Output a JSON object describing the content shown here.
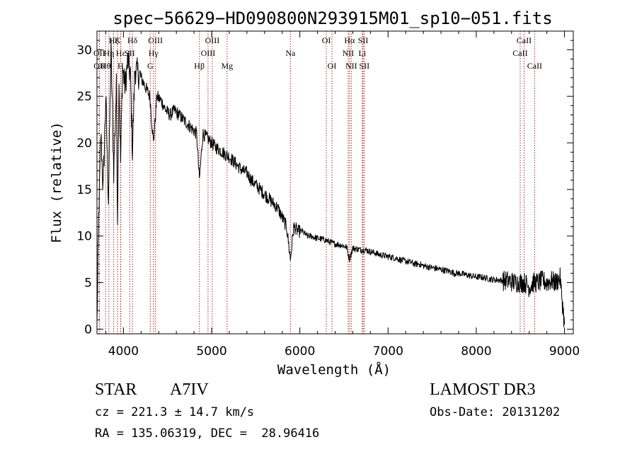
{
  "chart_data": {
    "type": "line",
    "title": "spec−56629−HD090800N293915M01_sp10−051.fits",
    "xlabel": "Wavelength (Å)",
    "ylabel": "Flux (relative)",
    "xlim": [
      3700,
      9100
    ],
    "ylim": [
      -0.5,
      32.0
    ],
    "xticks": [
      4000,
      5000,
      6000,
      7000,
      8000,
      9000
    ],
    "xtick_labels": [
      "4000",
      "5000",
      "6000",
      "7000",
      "8000",
      "9000"
    ],
    "yticks": [
      0,
      5,
      10,
      15,
      20,
      25,
      30
    ],
    "ytick_labels": [
      "0",
      "5",
      "10",
      "15",
      "20",
      "25",
      "30"
    ],
    "series": [
      {
        "name": "flux",
        "x": [
          3700,
          3720,
          3745,
          3770,
          3800,
          3830,
          3860,
          3890,
          3920,
          3933,
          3950,
          3968,
          3990,
          4020,
          4050,
          4080,
          4102,
          4130,
          4160,
          4200,
          4250,
          4300,
          4340,
          4380,
          4430,
          4480,
          4530,
          4580,
          4630,
          4680,
          4730,
          4780,
          4830,
          4861,
          4900,
          4950,
          5000,
          5050,
          5100,
          5150,
          5200,
          5250,
          5300,
          5350,
          5400,
          5450,
          5500,
          5550,
          5600,
          5650,
          5700,
          5750,
          5800,
          5850,
          5893,
          5930,
          5980,
          6030,
          6080,
          6130,
          6180,
          6230,
          6280,
          6330,
          6380,
          6430,
          6480,
          6530,
          6563,
          6600,
          6650,
          6700,
          6750,
          6800,
          6850,
          6900,
          6950,
          7000,
          7050,
          7100,
          7150,
          7200,
          7250,
          7300,
          7350,
          7400,
          7450,
          7500,
          7550,
          7600,
          7650,
          7700,
          7750,
          7800,
          7850,
          7900,
          7950,
          8000,
          8050,
          8100,
          8150,
          8200,
          8250,
          8300,
          8350,
          8400,
          8450,
          8500,
          8550,
          8600,
          8650,
          8700,
          8750,
          8800,
          8850,
          8900,
          8950,
          9000
        ],
        "values": [
          0.5,
          12.0,
          21.0,
          15.0,
          25.0,
          14.0,
          30.0,
          17.0,
          26.0,
          12.0,
          27.0,
          18.0,
          28.0,
          26.0,
          29.0,
          27.0,
          19.0,
          28.0,
          27.5,
          27.0,
          26.0,
          25.0,
          20.0,
          25.0,
          24.5,
          23.5,
          23.0,
          23.5,
          23.0,
          22.5,
          22.0,
          21.5,
          21.0,
          16.0,
          21.0,
          20.5,
          20.0,
          19.5,
          19.2,
          18.8,
          18.5,
          18.0,
          17.5,
          17.0,
          16.8,
          16.0,
          15.5,
          15.0,
          14.5,
          14.0,
          13.5,
          13.0,
          12.0,
          11.0,
          7.5,
          11.0,
          10.5,
          10.5,
          10.0,
          10.0,
          9.8,
          9.7,
          9.6,
          9.4,
          9.2,
          9.1,
          9.0,
          8.8,
          7.5,
          8.7,
          8.6,
          8.5,
          8.5,
          8.3,
          8.2,
          8.0,
          7.9,
          7.8,
          7.7,
          7.6,
          7.4,
          7.3,
          7.2,
          7.0,
          7.0,
          6.8,
          6.7,
          6.6,
          6.5,
          6.4,
          6.3,
          6.2,
          6.0,
          6.0,
          5.9,
          5.8,
          5.7,
          5.6,
          5.6,
          5.5,
          5.4,
          5.3,
          5.3,
          5.2,
          5.2,
          5.1,
          5.0,
          5.0,
          5.0,
          4.5,
          5.0,
          5.0,
          5.2,
          5.0,
          5.2,
          5.0,
          5.5,
          0.5
        ]
      }
    ],
    "line_markers": [
      {
        "label": "Hζ",
        "wavelength": 3889,
        "row": 0
      },
      {
        "label": "K",
        "wavelength": 3934,
        "row": 0
      },
      {
        "label": "Hδ",
        "wavelength": 4102,
        "row": 0
      },
      {
        "label": "OIII",
        "wavelength": 4363,
        "row": 0
      },
      {
        "label": "OIII",
        "wavelength": 5007,
        "row": 0
      },
      {
        "label": "OI",
        "wavelength": 6300,
        "row": 0
      },
      {
        "label": "Hα",
        "wavelength": 6563,
        "row": 0
      },
      {
        "label": "SII",
        "wavelength": 6717,
        "row": 0
      },
      {
        "label": "CaII",
        "wavelength": 8542,
        "row": 0
      },
      {
        "label": "OII",
        "wavelength": 3727,
        "row": 1
      },
      {
        "label": "Hη",
        "wavelength": 3835,
        "row": 1
      },
      {
        "label": "Hε",
        "wavelength": 3970,
        "row": 1
      },
      {
        "label": "SII",
        "wavelength": 4072,
        "row": 1
      },
      {
        "label": "Hγ",
        "wavelength": 4340,
        "row": 1
      },
      {
        "label": "OIII",
        "wavelength": 4959,
        "row": 1
      },
      {
        "label": "Na",
        "wavelength": 5893,
        "row": 1
      },
      {
        "label": "NII",
        "wavelength": 6548,
        "row": 1
      },
      {
        "label": "Li",
        "wavelength": 6708,
        "row": 1
      },
      {
        "label": "CaII",
        "wavelength": 8498,
        "row": 1
      },
      {
        "label": "OII",
        "wavelength": 3729,
        "row": 2
      },
      {
        "label": "Hθ",
        "wavelength": 3798,
        "row": 2
      },
      {
        "label": "H",
        "wavelength": 3968,
        "row": 2
      },
      {
        "label": "G",
        "wavelength": 4304,
        "row": 2
      },
      {
        "label": "Hβ",
        "wavelength": 4861,
        "row": 2
      },
      {
        "label": "Mg",
        "wavelength": 5175,
        "row": 2
      },
      {
        "label": "OI",
        "wavelength": 6364,
        "row": 2
      },
      {
        "label": "NII",
        "wavelength": 6583,
        "row": 2
      },
      {
        "label": "SII",
        "wavelength": 6731,
        "row": 2
      },
      {
        "label": "CaII",
        "wavelength": 8662,
        "row": 2
      }
    ],
    "marker_color": "#b22222",
    "line_color": "#000000"
  },
  "info": {
    "object_type": "STAR",
    "subclass": "A7IV",
    "survey": "LAMOST DR3",
    "redshift_text": "cz = 221.3 ± 14.7 km/s",
    "obs_date_text": "Obs-Date: 20131202",
    "coords_text": "RA = 135.06319, DEC =  28.96416"
  }
}
